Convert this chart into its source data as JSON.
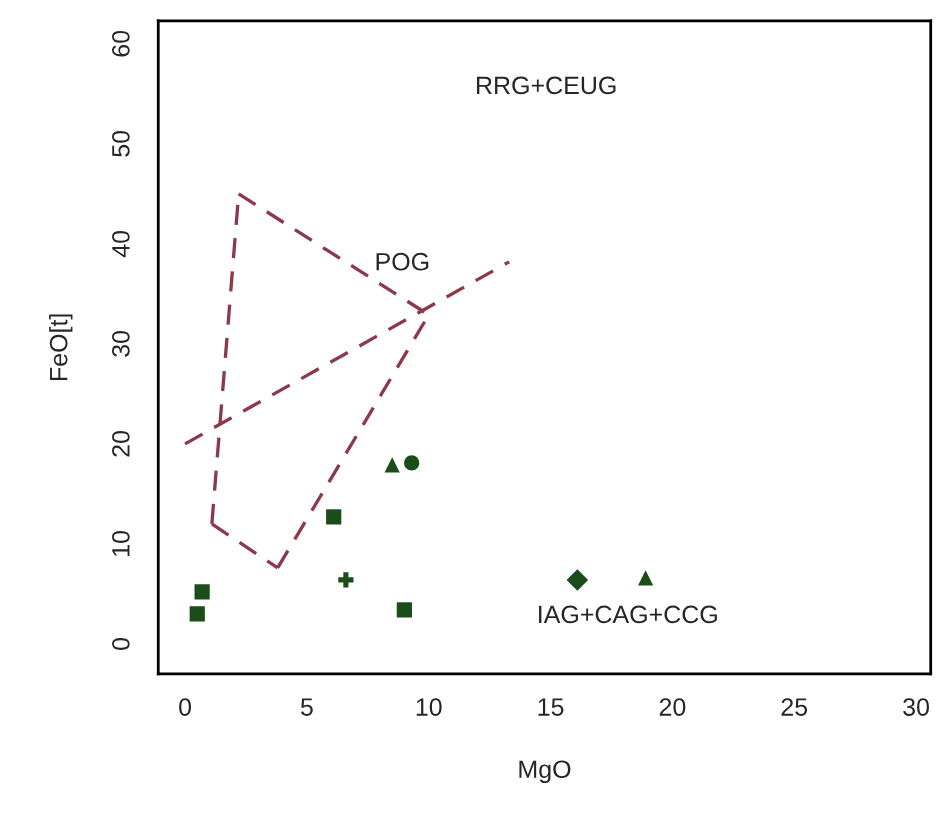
{
  "chart_data": {
    "type": "scatter",
    "xlabel": "MgO",
    "ylabel": "FeO[t]",
    "xlim": [
      -1.1,
      30.6
    ],
    "ylim": [
      -3,
      62.3
    ],
    "xticks": [
      0,
      5,
      10,
      15,
      20,
      25,
      30
    ],
    "yticks": [
      0,
      10,
      20,
      30,
      40,
      50,
      60
    ],
    "grid": false,
    "legend": false,
    "series": [
      {
        "type": "line",
        "color": "#8b3a4a",
        "line_style": "dashed",
        "marker": "none",
        "x": [
          2.2,
          10
        ],
        "values": [
          45,
          32.9
        ]
      },
      {
        "type": "line",
        "color": "#8b3a4a",
        "line_style": "dashed",
        "marker": "none",
        "x": [
          3.8,
          10
        ],
        "values": [
          7.6,
          32.9
        ]
      },
      {
        "type": "line",
        "color": "#8b3a4a",
        "line_style": "dashed",
        "marker": "none",
        "x": [
          1.1,
          3.8
        ],
        "values": [
          12,
          7.6
        ]
      },
      {
        "type": "line",
        "color": "#8b3a4a",
        "line_style": "dashed",
        "marker": "none",
        "x": [
          1.1,
          2.2
        ],
        "values": [
          12,
          45
        ]
      },
      {
        "type": "line",
        "color": "#8b3a4a",
        "line_style": "dashed",
        "marker": "none",
        "x": [
          0,
          13.3
        ],
        "values": [
          20,
          38.2
        ]
      },
      {
        "color": "#1a4d1a",
        "marker": "square",
        "x": [
          0.5
        ],
        "values": [
          3.0
        ]
      },
      {
        "color": "#1a4d1a",
        "marker": "square",
        "x": [
          0.7
        ],
        "values": [
          5.2
        ]
      },
      {
        "color": "#1a4d1a",
        "marker": "square",
        "x": [
          6.1
        ],
        "values": [
          12.7
        ]
      },
      {
        "color": "#1a4d1a",
        "marker": "cross",
        "x": [
          6.6
        ],
        "values": [
          6.4
        ]
      },
      {
        "color": "#1a4d1a",
        "marker": "square",
        "x": [
          9.0
        ],
        "values": [
          3.4
        ]
      },
      {
        "color": "#1a4d1a",
        "marker": "diamond",
        "x": [
          16.1
        ],
        "values": [
          6.4
        ]
      },
      {
        "color": "#1a4d1a",
        "marker": "triangle",
        "x": [
          18.9
        ],
        "values": [
          6.6
        ]
      },
      {
        "color": "#1a4d1a",
        "marker": "triangle",
        "x": [
          8.5
        ],
        "values": [
          17.9
        ]
      },
      {
        "color": "#1a4d1a",
        "marker": "circle",
        "x": [
          9.3
        ],
        "values": [
          18.1
        ]
      }
    ],
    "annotations": [
      "RRG+CEUG",
      "POG",
      "IAG+CAG+CCG"
    ]
  }
}
